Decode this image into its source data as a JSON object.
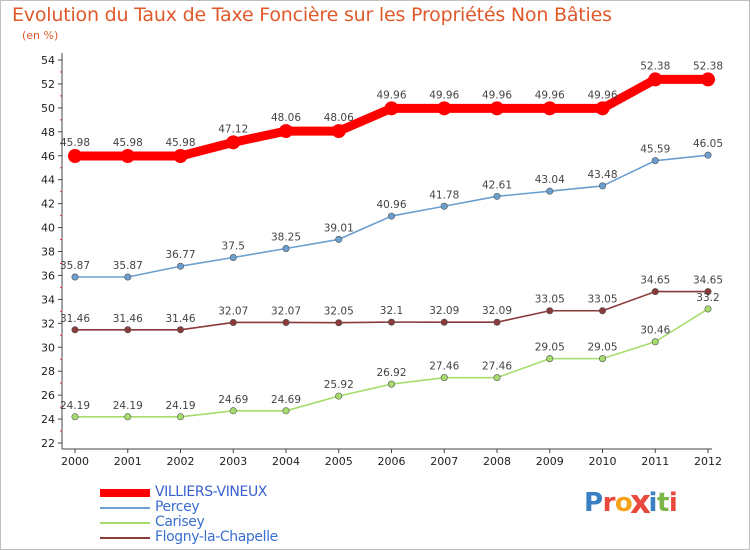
{
  "title": "Evolution du Taux de Taxe Foncière sur les Propriétés Non Bâties",
  "subtitle": "(en %)",
  "logo": {
    "text": "Proxiti",
    "colors": [
      "#3a7fc1",
      "#e8493c",
      "#f3a21b",
      "#e8493c",
      "#3a7fc1",
      "#7ab648",
      "#e8493c"
    ]
  },
  "chart_data": {
    "type": "line",
    "x": [
      "2000",
      "2001",
      "2002",
      "2003",
      "2004",
      "2005",
      "2006",
      "2007",
      "2008",
      "2009",
      "2010",
      "2011",
      "2012"
    ],
    "ylim": [
      22,
      54
    ],
    "yticks": [
      22,
      24,
      26,
      28,
      30,
      32,
      34,
      36,
      38,
      40,
      42,
      44,
      46,
      48,
      50,
      52,
      54
    ],
    "grid": false,
    "legend_position": "bottom-left",
    "series": [
      {
        "name": "VILLIERS-VINEUX",
        "color": "#ff0000",
        "values": [
          45.98,
          45.98,
          45.98,
          47.12,
          48.06,
          48.06,
          49.96,
          49.96,
          49.96,
          49.96,
          49.96,
          52.38,
          52.38
        ],
        "labels": [
          "45.98",
          "45.98",
          "45.98",
          "47.12",
          "48.06",
          "48.06",
          "49.96",
          "49.96",
          "49.96",
          "49.96",
          "49.96",
          "52.38",
          "52.38"
        ]
      },
      {
        "name": "Percey",
        "color": "#6b9fd0",
        "values": [
          35.87,
          35.87,
          36.77,
          37.5,
          38.25,
          39.01,
          40.96,
          41.78,
          42.61,
          43.04,
          43.48,
          45.59,
          46.05
        ],
        "labels": [
          "35.87",
          "35.87",
          "36.77",
          "37.5",
          "38.25",
          "39.01",
          "40.96",
          "41.78",
          "42.61",
          "43.04",
          "43.48",
          "45.59",
          "46.05"
        ]
      },
      {
        "name": "Carisey",
        "color": "#a6dc6e",
        "values": [
          24.19,
          24.19,
          24.19,
          24.69,
          24.69,
          25.92,
          26.92,
          27.46,
          27.46,
          29.05,
          29.05,
          30.46,
          33.2
        ],
        "labels": [
          "24.19",
          "24.19",
          "24.19",
          "24.69",
          "24.69",
          "25.92",
          "26.92",
          "27.46",
          "27.46",
          "29.05",
          "29.05",
          "30.46",
          "33.2"
        ]
      },
      {
        "name": "Flogny-la-Chapelle",
        "color": "#8b3a3a",
        "values": [
          31.46,
          31.46,
          31.46,
          32.07,
          32.07,
          32.05,
          32.1,
          32.09,
          32.09,
          33.05,
          33.05,
          34.65,
          34.65
        ],
        "labels": [
          "31.46",
          "31.46",
          "31.46",
          "32.07",
          "32.07",
          "32.05",
          "32.1",
          "32.09",
          "32.09",
          "33.05",
          "33.05",
          "34.65",
          "34.65"
        ]
      }
    ]
  }
}
